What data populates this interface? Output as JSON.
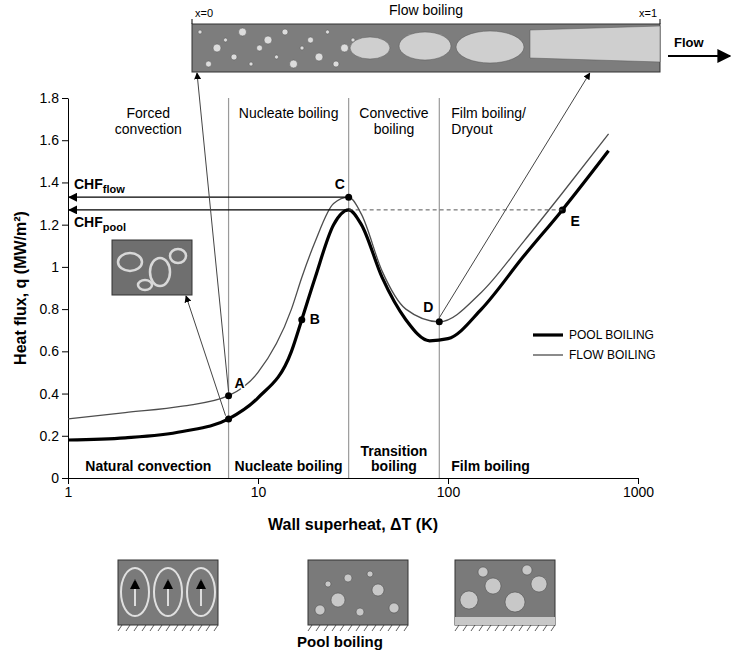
{
  "chart_data": {
    "type": "line",
    "log": "x",
    "grid": false,
    "legend": "right",
    "xlabel": "Wall superheat, ΔT (K)",
    "ylabel": "Heat flux, q (MW/m²)",
    "xlim": [
      1,
      1000
    ],
    "ylim": [
      0,
      1.8
    ],
    "xticks": [
      1,
      10,
      100,
      1000
    ],
    "yticks": [
      0,
      0.2,
      0.4,
      0.6,
      0.8,
      1,
      1.2,
      1.4,
      1.6,
      1.8
    ],
    "series": [
      {
        "name": "POOL BOILING",
        "color": "#000000",
        "line_style": "solid",
        "x": [
          1,
          2,
          4,
          7,
          10,
          15,
          17,
          20,
          25,
          30,
          35,
          45,
          60,
          80,
          100,
          150,
          250,
          400,
          700
        ],
        "values": [
          0.18,
          0.19,
          0.22,
          0.28,
          0.38,
          0.6,
          0.75,
          0.95,
          1.2,
          1.27,
          1.2,
          0.95,
          0.75,
          0.65,
          0.66,
          0.8,
          1.05,
          1.27,
          1.55
        ]
      },
      {
        "name": "FLOW BOILING",
        "color": "#4d4d4d",
        "line_style": "solid",
        "x": [
          1,
          2,
          4,
          7,
          10,
          15,
          17,
          20,
          25,
          30,
          35,
          45,
          60,
          90,
          150,
          250,
          400,
          700
        ],
        "values": [
          0.28,
          0.31,
          0.34,
          0.39,
          0.5,
          0.8,
          0.95,
          1.12,
          1.3,
          1.33,
          1.25,
          0.98,
          0.8,
          0.74,
          0.88,
          1.12,
          1.35,
          1.63
        ]
      }
    ],
    "boundaries": [
      7,
      30,
      90
    ],
    "top_labels": [
      "Forced convection",
      "Nucleate boiling",
      "Convective boiling",
      "Film boiling/ Dryout"
    ],
    "bottom_labels": [
      "Natural convection",
      "Nucleate boiling",
      "Transition boiling",
      "Film boiling"
    ],
    "points": [
      {
        "label": "A",
        "x": 7,
        "y": [
          0.28,
          0.39
        ]
      },
      {
        "label": "B",
        "x": 17,
        "y": [
          0.75
        ]
      },
      {
        "label": "C",
        "x": 30,
        "y": [
          1.33
        ]
      },
      {
        "label": "D",
        "x": 90,
        "y": [
          0.74
        ]
      },
      {
        "label": "E",
        "x": 400,
        "y": [
          1.27
        ]
      }
    ],
    "chf": [
      {
        "label": "CHF",
        "sub": "flow",
        "x": 30,
        "y": 1.33
      },
      {
        "label": "CHF",
        "sub": "pool",
        "x": 30,
        "y": 1.27
      }
    ],
    "dashed_line": {
      "x": [
        30,
        400
      ],
      "y": 1.27
    },
    "flow_diagram": {
      "title": "Flow boiling",
      "start": "x=0",
      "end": "x=1",
      "direction": "Flow"
    },
    "pool_caption": "Pool boiling"
  }
}
